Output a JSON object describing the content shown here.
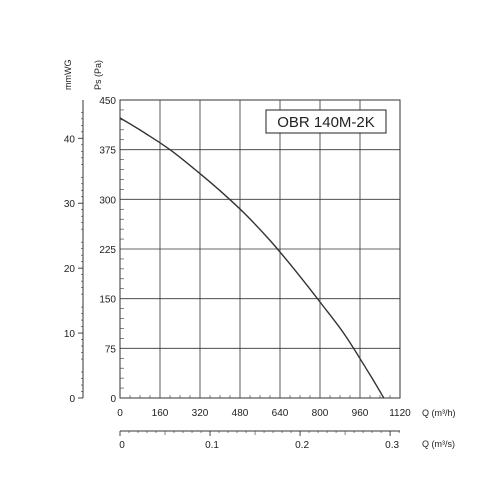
{
  "chart_data": {
    "type": "line",
    "title": "OBR 140M-2K",
    "xlabel": "Q (m³/h)",
    "x2label": "Q (m³/s)",
    "ylabel": "Ps (Pa)",
    "y2label": "mmWG",
    "xlim": [
      0,
      1120
    ],
    "ylim": [
      0,
      450
    ],
    "x2lim": [
      0,
      0.311
    ],
    "y2lim": [
      0,
      45.9
    ],
    "x_ticks": [
      "0",
      "160",
      "320",
      "480",
      "640",
      "800",
      "960",
      "1120"
    ],
    "y_ticks": [
      "0",
      "75",
      "150",
      "225",
      "300",
      "375",
      "450"
    ],
    "x2_ticks": [
      "0",
      "0.1",
      "0.2",
      "0.3"
    ],
    "y2_ticks": [
      "0",
      "10",
      "20",
      "30",
      "40"
    ],
    "grid": true,
    "series": [
      {
        "x": [
          0,
          100,
          200,
          300,
          400,
          500,
          600,
          700,
          800,
          900,
          1000,
          1055
        ],
        "y": [
          423,
          400,
          375,
          345,
          313,
          278,
          238,
          193,
          145,
          95,
          35,
          0
        ]
      }
    ],
    "colors": {
      "curve": "#333333",
      "grid": "#333333",
      "background": "#ffffff"
    }
  }
}
